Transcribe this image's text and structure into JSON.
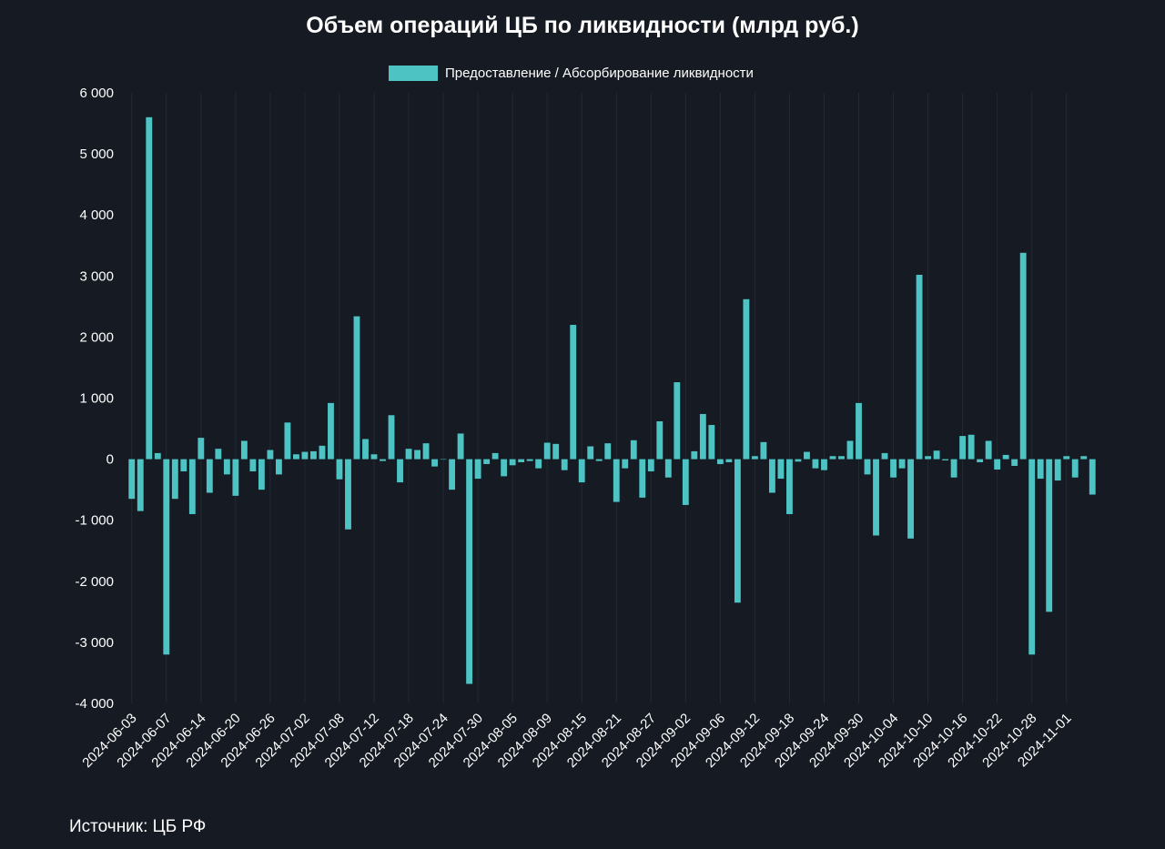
{
  "title": "Объем операций ЦБ по ликвидности (млрд руб.)",
  "source": "Источник: ЦБ РФ",
  "chart_data": {
    "type": "bar",
    "title": "Объем операций ЦБ по ликвидности (млрд руб.)",
    "legend": {
      "label": "Предоставление / Абсорбирование ликвидности",
      "position": "top-center"
    },
    "series": [
      {
        "name": "Предоставление / Абсорбирование ликвидности",
        "color": "#4dc3c3",
        "values": [
          -650,
          -850,
          5600,
          100,
          -3200,
          -650,
          -200,
          -900,
          350,
          -550,
          170,
          -250,
          -600,
          300,
          -200,
          -500,
          150,
          -250,
          600,
          80,
          120,
          130,
          220,
          920,
          -330,
          -1150,
          2340,
          330,
          80,
          -30,
          720,
          -380,
          170,
          150,
          260,
          -120,
          0,
          -500,
          420,
          -3680,
          -320,
          -80,
          100,
          -280,
          -100,
          -50,
          -30,
          -150,
          270,
          250,
          -180,
          2200,
          -380,
          210,
          -30,
          260,
          -700,
          -150,
          310,
          -630,
          -200,
          620,
          -300,
          1260,
          -750,
          130,
          740,
          560,
          -80,
          -50,
          -2350,
          2620,
          50,
          280,
          -550,
          -320,
          -900,
          -40,
          120,
          -150,
          -180,
          50,
          50,
          300,
          920,
          -250,
          -1250,
          100,
          -300,
          -150,
          -1300,
          3020,
          50,
          140,
          -20,
          -300,
          380,
          400,
          -50,
          300,
          -170,
          70,
          -110,
          3380,
          -3200,
          -320,
          -2500,
          -350,
          50,
          -300,
          50,
          -580
        ]
      }
    ],
    "x_tick_labels": [
      "2024-06-03",
      "2024-06-07",
      "2024-06-14",
      "2024-06-20",
      "2024-06-26",
      "2024-07-02",
      "2024-07-08",
      "2024-07-12",
      "2024-07-18",
      "2024-07-24",
      "2024-07-30",
      "2024-08-05",
      "2024-08-09",
      "2024-08-15",
      "2024-08-21",
      "2024-08-27",
      "2024-09-02",
      "2024-09-06",
      "2024-09-12",
      "2024-09-18",
      "2024-09-24",
      "2024-09-30",
      "2024-10-04",
      "2024-10-10",
      "2024-10-16",
      "2024-10-22",
      "2024-10-28",
      "2024-11-01"
    ],
    "y_ticks": [
      6000,
      5000,
      4000,
      3000,
      2000,
      1000,
      0,
      -1000,
      -2000,
      -3000,
      -4000
    ],
    "y_tick_labels": [
      "6 000",
      "5 000",
      "4 000",
      "3 000",
      "2 000",
      "1 000",
      "0",
      "-1 000",
      "-2 000",
      "-3 000",
      "-4 000"
    ],
    "ylim": [
      -4000,
      6000
    ],
    "grid": {
      "vertical": true,
      "horizontal": false
    },
    "colors": {
      "background": "#151a23",
      "bar": "#4dc3c3",
      "grid": "#232a35",
      "text": "#ffffff"
    }
  }
}
